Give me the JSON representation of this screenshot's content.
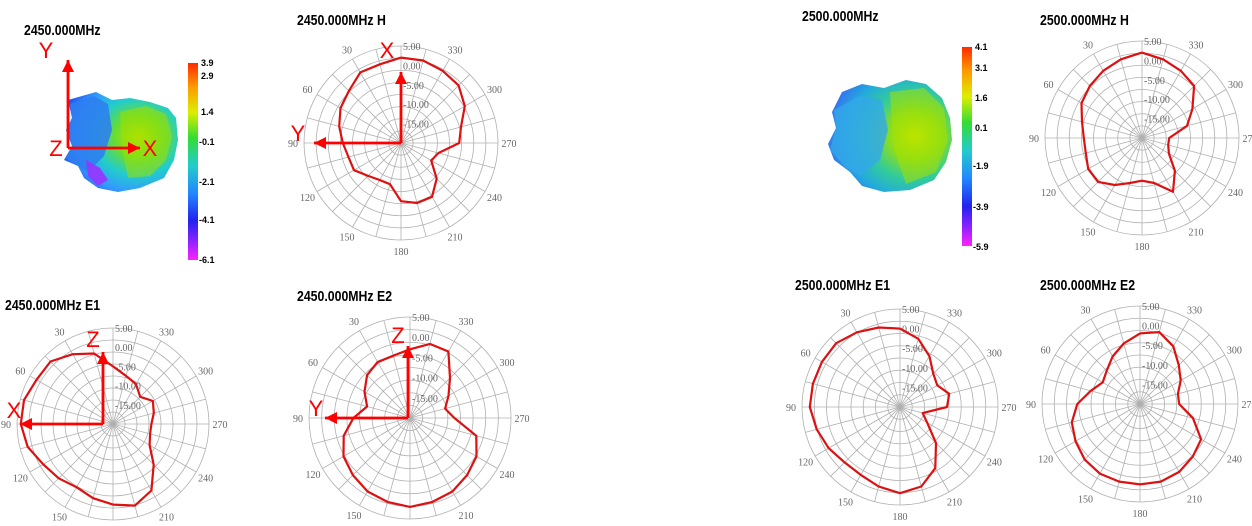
{
  "panels": {
    "p2450_3d": {
      "title": "2450.000MHz"
    },
    "p2450_h": {
      "title": "2450.000MHz  H"
    },
    "p2450_e1": {
      "title": "2450.000MHz  E1"
    },
    "p2450_e2": {
      "title": "2450.000MHz  E2"
    },
    "p2500_3d": {
      "title": "2500.000MHz"
    },
    "p2500_h": {
      "title": "2500.000MHz  H"
    },
    "p2500_e1": {
      "title": "2500.000MHz  E1"
    },
    "p2500_e2": {
      "title": "2500.000MHz  E2"
    }
  },
  "colors": {
    "pattern": "#dd1111",
    "axes": "#ff0000",
    "grid": "#b0b0b0"
  },
  "axis_letters": {
    "x": "X",
    "y": "Y",
    "z": "Z"
  },
  "chart_data": [
    {
      "id": "p2450_3d",
      "type": "heatmap",
      "title": "2450.000MHz",
      "colorbar_ticks": [
        "3.9",
        "2.9",
        "1.4",
        "-0.1",
        "-2.1",
        "-4.1",
        "-6.1"
      ],
      "colorbar_range": [
        -6.1,
        3.9
      ],
      "axis_triad": [
        "Y",
        "Z",
        "X"
      ]
    },
    {
      "id": "p2450_h",
      "type": "line",
      "subtype": "polar",
      "title": "2450.000MHz  H",
      "radial_labels": [
        "5.00",
        "0.00",
        "-5.00",
        "-10.00",
        "-15.00"
      ],
      "radial_range": [
        -20,
        5
      ],
      "angle_labels": [
        "30",
        "330",
        "60",
        "300",
        "90",
        "270",
        "120",
        "240",
        "150",
        "210",
        "180"
      ],
      "overlay_axes": [
        "X",
        "Y"
      ],
      "angles": [
        0,
        15,
        30,
        45,
        60,
        75,
        90,
        105,
        120,
        135,
        150,
        165,
        180,
        195,
        210,
        225,
        240,
        255,
        270,
        285,
        300,
        315,
        330,
        345
      ],
      "values": [
        2.0,
        1.0,
        1.0,
        -1.0,
        -2.0,
        -3.5,
        -5.0,
        -6.0,
        -6.0,
        -8.0,
        -9.0,
        -9.0,
        -5.0,
        -4.0,
        -4.0,
        -7.0,
        -11.0,
        -10.0,
        -5.0,
        -4.0,
        -1.0,
        1.0,
        1.5,
        2.0
      ]
    },
    {
      "id": "p2450_e1",
      "type": "line",
      "subtype": "polar",
      "title": "2450.000MHz  E1",
      "radial_labels": [
        "5.00",
        "0.00",
        "-5.00",
        "-10.00",
        "-15.00"
      ],
      "radial_range": [
        -20,
        5
      ],
      "angle_labels": [
        "30",
        "330",
        "60",
        "300",
        "90",
        "270",
        "120",
        "240",
        "150",
        "210",
        "180"
      ],
      "overlay_axes": [
        "Z",
        "X"
      ],
      "angles": [
        0,
        15,
        30,
        45,
        60,
        75,
        90,
        105,
        120,
        135,
        150,
        165,
        180,
        195,
        210,
        225,
        240,
        255,
        270,
        285,
        300,
        315,
        330,
        345
      ],
      "values": [
        -5.0,
        -1.0,
        1.0,
        3.0,
        3.0,
        4.0,
        4.0,
        3.0,
        1.0,
        0.0,
        -1.0,
        0.0,
        1.0,
        2.0,
        0.0,
        -5.0,
        -9.0,
        -10.0,
        -10.0,
        -9.0,
        -8.0,
        -10.0,
        -8.0,
        -7.0
      ]
    },
    {
      "id": "p2450_e2",
      "type": "line",
      "subtype": "polar",
      "title": "2450.000MHz  E2",
      "radial_labels": [
        "5.00",
        "0.00",
        "-5.00",
        "-10.00",
        "-15.00"
      ],
      "radial_range": [
        -20,
        5
      ],
      "angle_labels": [
        "30",
        "330",
        "60",
        "300",
        "90",
        "270",
        "120",
        "240",
        "150",
        "210",
        "180"
      ],
      "overlay_axes": [
        "Z",
        "Y"
      ],
      "angles": [
        0,
        15,
        30,
        45,
        60,
        75,
        90,
        105,
        120,
        135,
        150,
        165,
        180,
        195,
        210,
        225,
        240,
        255,
        270,
        285,
        300,
        315,
        330,
        345
      ],
      "values": [
        -3.0,
        -4.0,
        -4.0,
        -5.0,
        -7.0,
        -9.0,
        -6.0,
        -3.0,
        -1.0,
        0.0,
        1.0,
        1.5,
        2.0,
        1.5,
        1.0,
        0.0,
        -1.0,
        -3.0,
        -9.0,
        -11.0,
        -9.0,
        -6.0,
        -1.0,
        -1.0
      ]
    },
    {
      "id": "p2500_3d",
      "type": "heatmap",
      "title": "2500.000MHz",
      "colorbar_ticks": [
        "4.1",
        "3.1",
        "1.6",
        "0.1",
        "-1.9",
        "-3.9",
        "-5.9"
      ],
      "colorbar_range": [
        -5.9,
        4.1
      ]
    },
    {
      "id": "p2500_h",
      "type": "line",
      "subtype": "polar",
      "title": "2500.000MHz  H",
      "radial_labels": [
        "5.00",
        "0.00",
        "-5.00",
        "-10.00",
        "-15.00"
      ],
      "radial_range": [
        -20,
        5
      ],
      "angle_labels": [
        "30",
        "330",
        "60",
        "300",
        "90",
        "270",
        "120",
        "240",
        "150",
        "210",
        "180"
      ],
      "angles": [
        0,
        15,
        30,
        45,
        60,
        75,
        90,
        105,
        120,
        135,
        150,
        165,
        180,
        195,
        210,
        225,
        240,
        255,
        270,
        285,
        300,
        315,
        330,
        345
      ],
      "values": [
        2.0,
        1.0,
        0.0,
        -1.0,
        -2.0,
        -4.0,
        -5.0,
        -5.0,
        -4.0,
        -4.0,
        -6.0,
        -8.0,
        -9.0,
        -8.0,
        -4.0,
        -8.0,
        -12.0,
        -13.0,
        -13.0,
        -8.0,
        -5.0,
        -1.0,
        0.0,
        1.0
      ]
    },
    {
      "id": "p2500_e1",
      "type": "line",
      "subtype": "polar",
      "title": "2500.000MHz  E1",
      "radial_labels": [
        "5.00",
        "0.00",
        "-5.00",
        "-10.00",
        "-15.00"
      ],
      "radial_range": [
        -20,
        5
      ],
      "angle_labels": [
        "30",
        "330",
        "60",
        "300",
        "90",
        "270",
        "120",
        "240",
        "150",
        "210",
        "180"
      ],
      "angles": [
        0,
        15,
        30,
        45,
        60,
        75,
        90,
        105,
        120,
        135,
        150,
        165,
        180,
        195,
        210,
        225,
        240,
        255,
        270,
        285,
        300,
        315,
        330,
        345
      ],
      "values": [
        0.0,
        1.0,
        2.0,
        3.0,
        3.0,
        3.0,
        3.0,
        2.0,
        1.0,
        0.0,
        0.0,
        1.0,
        2.0,
        1.0,
        -2.0,
        -7.0,
        -12.0,
        -14.0,
        -8.0,
        -7.0,
        -9.0,
        -8.0,
        -5.0,
        -2.0
      ]
    },
    {
      "id": "p2500_e2",
      "type": "line",
      "subtype": "polar",
      "title": "2500.000MHz  E2",
      "radial_labels": [
        "5.00",
        "0.00",
        "-5.00",
        "-10.00",
        "-15.00"
      ],
      "radial_range": [
        -20,
        5
      ],
      "angle_labels": [
        "30",
        "330",
        "60",
        "300",
        "90",
        "270",
        "120",
        "240",
        "150",
        "210",
        "180"
      ],
      "angles": [
        0,
        15,
        30,
        45,
        60,
        75,
        90,
        105,
        120,
        135,
        150,
        165,
        180,
        195,
        210,
        225,
        240,
        255,
        270,
        285,
        300,
        315,
        330,
        345
      ],
      "values": [
        -2.0,
        -4.0,
        -6.0,
        -8.0,
        -9.0,
        -7.0,
        -4.0,
        -2.0,
        -1.0,
        0.0,
        0.5,
        0.5,
        0.5,
        0.5,
        0.0,
        -1.0,
        -2.0,
        -6.0,
        -10.0,
        -10.0,
        -8.0,
        -6.0,
        -3.0,
        -1.0
      ]
    }
  ]
}
